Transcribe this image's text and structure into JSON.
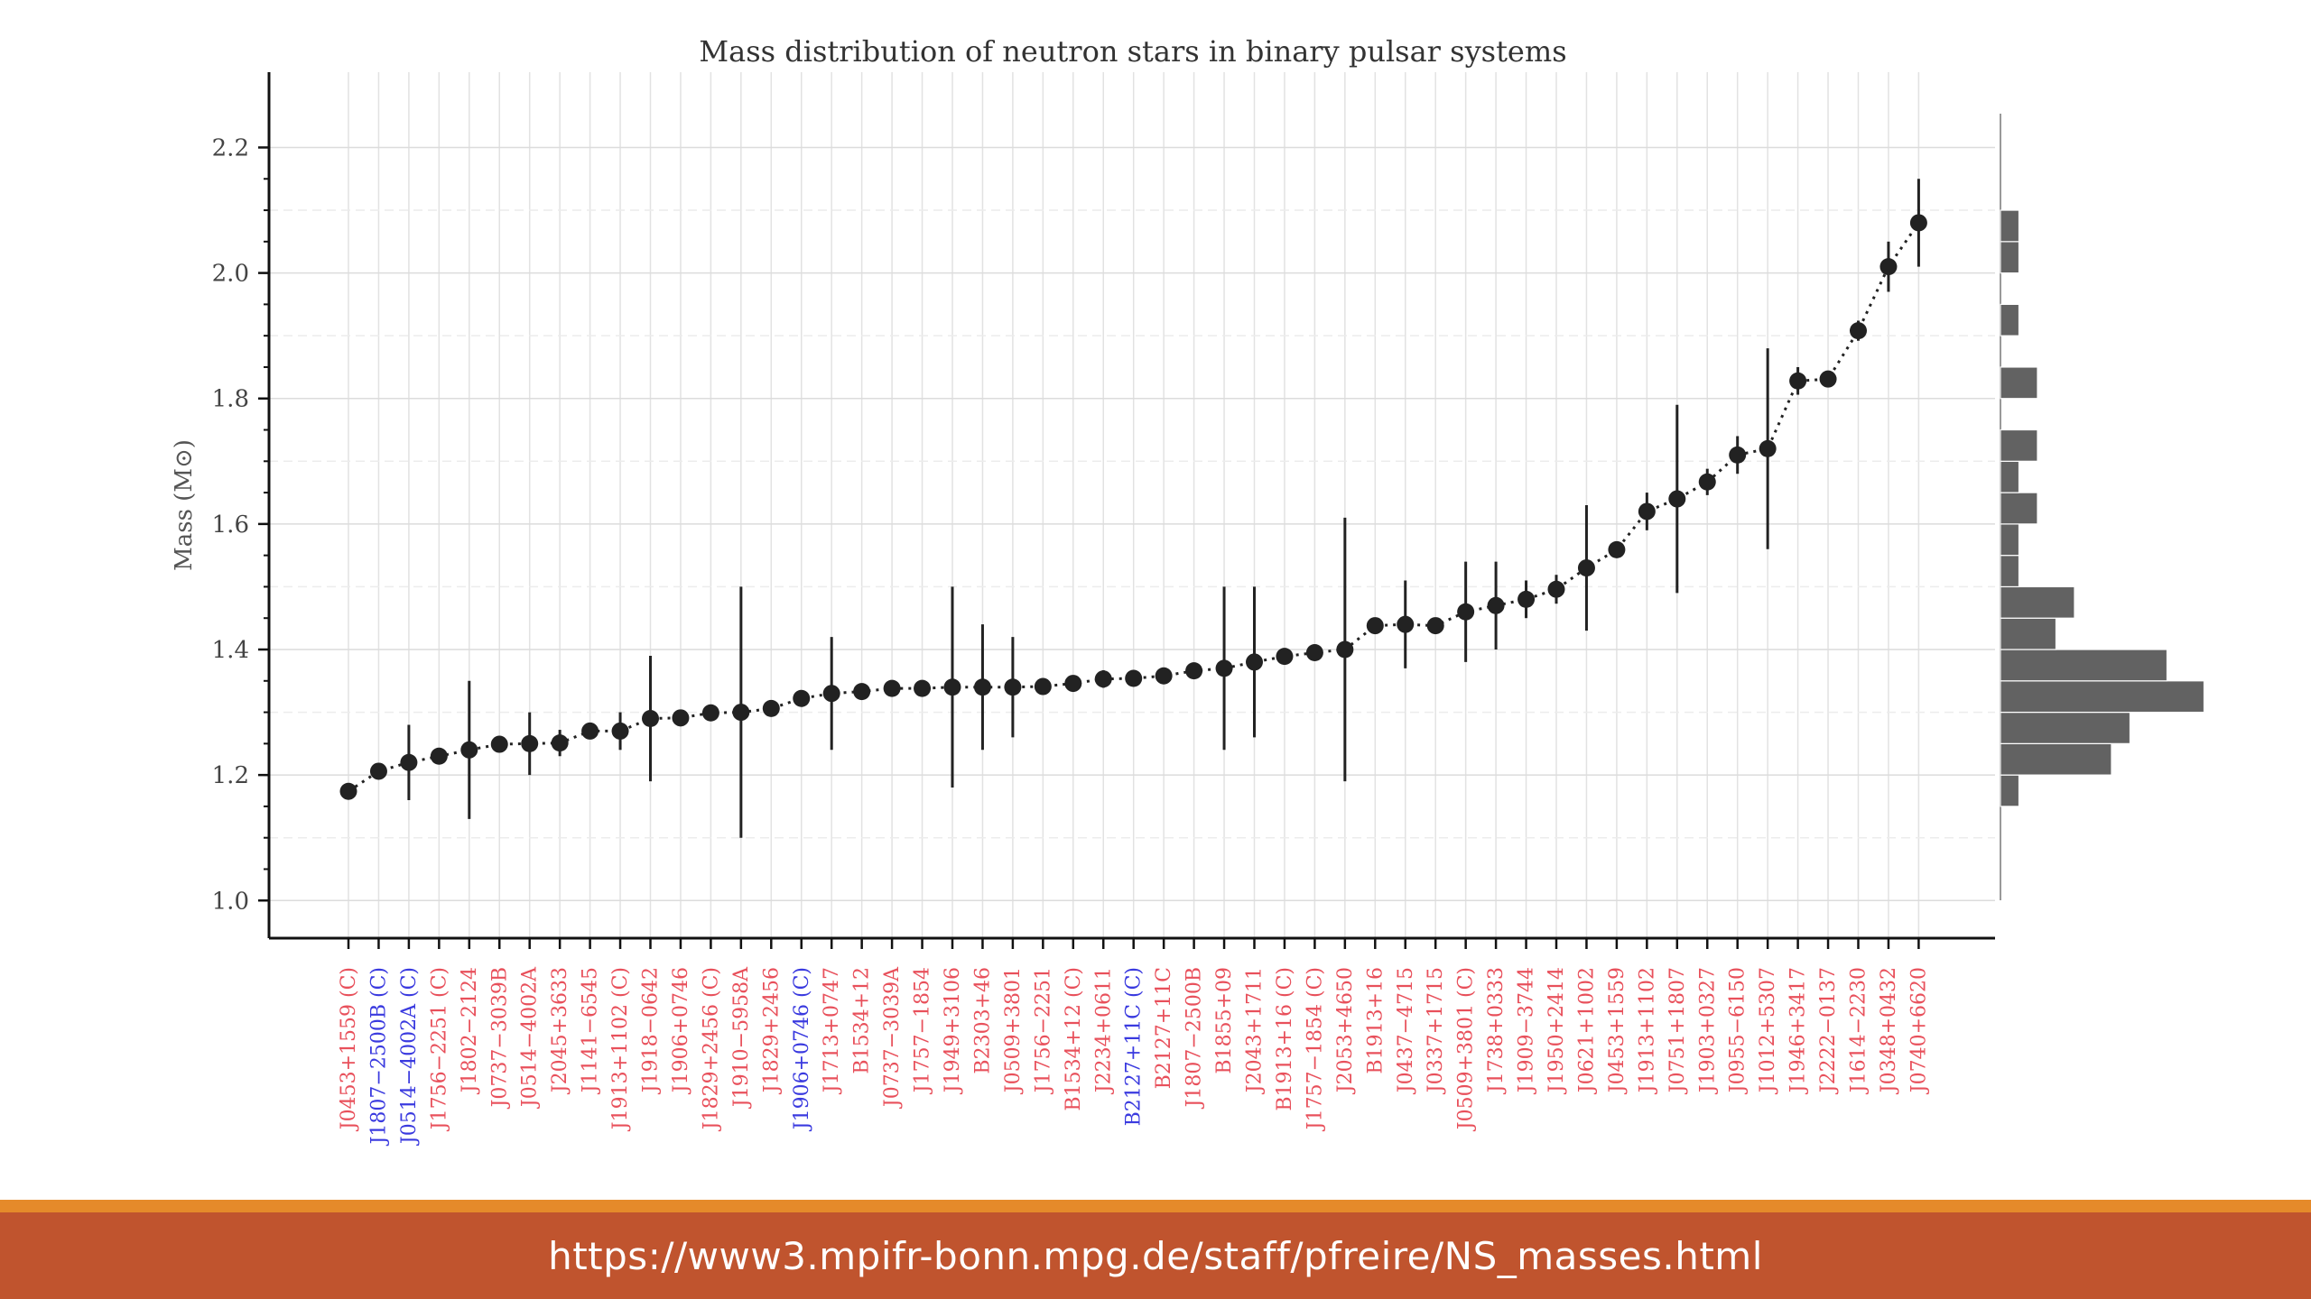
{
  "footer": {
    "url": "https://www3.mpifr-bonn.mpg.de/staff/pfreire/NS_masses.html"
  },
  "colors": {
    "red": "#e8505b",
    "blue": "#3a3adf",
    "marker": "#222222",
    "hist": "#555555",
    "footer_bg": "#c0542e",
    "footer_stripe": "#e58a2a"
  },
  "chart_data": {
    "type": "scatter",
    "title": "Mass distribution of neutron stars in binary pulsar systems",
    "ylabel": "Mass (M⊙)",
    "ylim": [
      0.94,
      2.32
    ],
    "yticks": [
      "1.0",
      "1.2",
      "1.4",
      "1.6",
      "1.8",
      "2.0",
      "2.2"
    ],
    "grid": true,
    "points": [
      {
        "name": "J0453+1559 (C)",
        "mass": 1.174,
        "err": 0.004,
        "color": "red"
      },
      {
        "name": "J1807−2500B (C)",
        "mass": 1.206,
        "err": 0.002,
        "color": "blue"
      },
      {
        "name": "J0514−4002A (C)",
        "mass": 1.22,
        "err": 0.06,
        "color": "blue"
      },
      {
        "name": "J1756−2251 (C)",
        "mass": 1.23,
        "err": 0.007,
        "color": "red"
      },
      {
        "name": "J1802−2124",
        "mass": 1.24,
        "err": 0.11,
        "color": "red"
      },
      {
        "name": "J0737−3039B",
        "mass": 1.249,
        "err": 0.001,
        "color": "red"
      },
      {
        "name": "J0514−4002A",
        "mass": 1.25,
        "err": 0.05,
        "color": "red"
      },
      {
        "name": "J2045+3633",
        "mass": 1.251,
        "err": 0.021,
        "color": "red"
      },
      {
        "name": "J1141−6545",
        "mass": 1.27,
        "err": 0.01,
        "color": "red"
      },
      {
        "name": "J1913+1102 (C)",
        "mass": 1.27,
        "err": 0.03,
        "color": "red"
      },
      {
        "name": "J1918−0642",
        "mass": 1.29,
        "err": 0.1,
        "color": "red"
      },
      {
        "name": "J1906+0746",
        "mass": 1.291,
        "err": 0.011,
        "color": "red"
      },
      {
        "name": "J1829+2456 (C)",
        "mass": 1.299,
        "err": 0.004,
        "color": "red"
      },
      {
        "name": "J1910−5958A",
        "mass": 1.3,
        "err": 0.2,
        "color": "red"
      },
      {
        "name": "J1829+2456",
        "mass": 1.306,
        "err": 0.007,
        "color": "red"
      },
      {
        "name": "J1906+0746 (C)",
        "mass": 1.322,
        "err": 0.011,
        "color": "blue"
      },
      {
        "name": "J1713+0747",
        "mass": 1.33,
        "err": 0.09,
        "color": "red"
      },
      {
        "name": "B1534+12",
        "mass": 1.333,
        "err": 0.001,
        "color": "red"
      },
      {
        "name": "J0737−3039A",
        "mass": 1.338,
        "err": 0.001,
        "color": "red"
      },
      {
        "name": "J1757−1854",
        "mass": 1.338,
        "err": 0.001,
        "color": "red"
      },
      {
        "name": "J1949+3106",
        "mass": 1.34,
        "err": 0.16,
        "color": "red"
      },
      {
        "name": "B2303+46",
        "mass": 1.34,
        "err": 0.1,
        "color": "red"
      },
      {
        "name": "J0509+3801",
        "mass": 1.34,
        "err": 0.08,
        "color": "red"
      },
      {
        "name": "J1756−2251",
        "mass": 1.341,
        "err": 0.007,
        "color": "red"
      },
      {
        "name": "B1534+12 (C)",
        "mass": 1.346,
        "err": 0.001,
        "color": "red"
      },
      {
        "name": "J2234+0611",
        "mass": 1.353,
        "err": 0.014,
        "color": "red"
      },
      {
        "name": "B2127+11C (C)",
        "mass": 1.354,
        "err": 0.001,
        "color": "blue"
      },
      {
        "name": "B2127+11C",
        "mass": 1.358,
        "err": 0.001,
        "color": "red"
      },
      {
        "name": "J1807−2500B",
        "mass": 1.366,
        "err": 0.002,
        "color": "red"
      },
      {
        "name": "B1855+09",
        "mass": 1.37,
        "err": 0.13,
        "color": "red"
      },
      {
        "name": "J2043+1711",
        "mass": 1.38,
        "err": 0.12,
        "color": "red"
      },
      {
        "name": "B1913+16 (C)",
        "mass": 1.389,
        "err": 0.001,
        "color": "red"
      },
      {
        "name": "J1757−1854 (C)",
        "mass": 1.395,
        "err": 0.001,
        "color": "red"
      },
      {
        "name": "J2053+4650",
        "mass": 1.4,
        "err": 0.21,
        "color": "red"
      },
      {
        "name": "B1913+16",
        "mass": 1.438,
        "err": 0.001,
        "color": "red"
      },
      {
        "name": "J0437−4715",
        "mass": 1.44,
        "err": 0.07,
        "color": "red"
      },
      {
        "name": "J0337+1715",
        "mass": 1.438,
        "err": 0.001,
        "color": "red"
      },
      {
        "name": "J0509+3801 (C)",
        "mass": 1.46,
        "err": 0.08,
        "color": "red"
      },
      {
        "name": "J1738+0333",
        "mass": 1.47,
        "err": 0.07,
        "color": "red"
      },
      {
        "name": "J1909−3744",
        "mass": 1.48,
        "err": 0.03,
        "color": "red"
      },
      {
        "name": "J1950+2414",
        "mass": 1.496,
        "err": 0.023,
        "color": "red"
      },
      {
        "name": "J0621+1002",
        "mass": 1.53,
        "err": 0.1,
        "color": "red"
      },
      {
        "name": "J0453+1559",
        "mass": 1.559,
        "err": 0.004,
        "color": "red"
      },
      {
        "name": "J1913+1102",
        "mass": 1.62,
        "err": 0.03,
        "color": "red"
      },
      {
        "name": "J0751+1807",
        "mass": 1.64,
        "err": 0.15,
        "color": "red"
      },
      {
        "name": "J1903+0327",
        "mass": 1.667,
        "err": 0.021,
        "color": "red"
      },
      {
        "name": "J0955−6150",
        "mass": 1.71,
        "err": 0.03,
        "color": "red"
      },
      {
        "name": "J1012+5307",
        "mass": 1.72,
        "err": 0.16,
        "color": "red"
      },
      {
        "name": "J1946+3417",
        "mass": 1.828,
        "err": 0.022,
        "color": "red"
      },
      {
        "name": "J2222−0137",
        "mass": 1.831,
        "err": 0.01,
        "color": "red"
      },
      {
        "name": "J1614−2230",
        "mass": 1.908,
        "err": 0.016,
        "color": "red"
      },
      {
        "name": "J0348+0432",
        "mass": 2.01,
        "err": 0.04,
        "color": "red"
      },
      {
        "name": "J0740+6620",
        "mass": 2.08,
        "err": 0.07,
        "color": "red"
      }
    ],
    "histogram": [
      {
        "lo": 1.15,
        "hi": 1.2,
        "count": 1
      },
      {
        "lo": 1.2,
        "hi": 1.25,
        "count": 6
      },
      {
        "lo": 1.25,
        "hi": 1.3,
        "count": 7
      },
      {
        "lo": 1.3,
        "hi": 1.35,
        "count": 11
      },
      {
        "lo": 1.35,
        "hi": 1.4,
        "count": 9
      },
      {
        "lo": 1.4,
        "hi": 1.45,
        "count": 3
      },
      {
        "lo": 1.45,
        "hi": 1.5,
        "count": 4
      },
      {
        "lo": 1.5,
        "hi": 1.55,
        "count": 1
      },
      {
        "lo": 1.55,
        "hi": 1.6,
        "count": 1
      },
      {
        "lo": 1.6,
        "hi": 1.65,
        "count": 2
      },
      {
        "lo": 1.65,
        "hi": 1.7,
        "count": 1
      },
      {
        "lo": 1.7,
        "hi": 1.75,
        "count": 2
      },
      {
        "lo": 1.8,
        "hi": 1.85,
        "count": 2
      },
      {
        "lo": 1.9,
        "hi": 1.95,
        "count": 1
      },
      {
        "lo": 2.0,
        "hi": 2.05,
        "count": 1
      },
      {
        "lo": 2.05,
        "hi": 2.1,
        "count": 1
      }
    ]
  }
}
